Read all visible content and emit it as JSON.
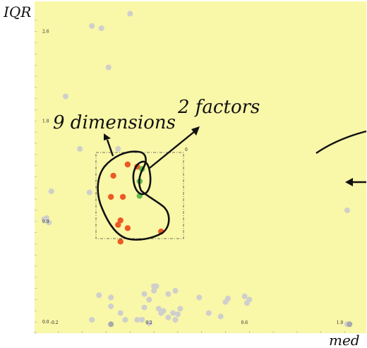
{
  "chart_data": {
    "type": "scatter",
    "xlabel": "med",
    "ylabel": "IQR",
    "xlim": [
      -0.28,
      1.11
    ],
    "ylim": [
      -0.1,
      2.87
    ],
    "x_ticks": [
      {
        "value": -0.2,
        "label": "-0.2"
      },
      {
        "value": 0.2,
        "label": "0.2"
      },
      {
        "value": 0.6,
        "label": "0.6"
      },
      {
        "value": 1.0,
        "label": "1.0"
      }
    ],
    "y_ticks": [
      {
        "value": 0.0,
        "label": "0.0"
      },
      {
        "value": 0.9,
        "label": "0.9"
      },
      {
        "value": 1.8,
        "label": "1.8"
      },
      {
        "value": 2.6,
        "label": "2.6"
      }
    ],
    "corner_label": "0",
    "annotations": [
      "9 dimensions",
      "2 factors"
    ],
    "colors": {
      "background": "#f9f7a8",
      "gray": "#cfcfcc",
      "dark_gray": "#a9a9ad",
      "red": "#ec5a24",
      "green": "#5fbf4a"
    },
    "series": [
      {
        "color": "gray",
        "points": [
          [
            -0.22,
            0.89
          ],
          [
            -0.24,
            0.92
          ],
          [
            -0.23,
            0.93
          ],
          [
            -0.21,
            1.17
          ],
          [
            -0.15,
            2.02
          ],
          [
            -0.09,
            1.55
          ],
          [
            -0.05,
            1.16
          ],
          [
            -0.04,
            2.65
          ],
          [
            0.0,
            2.63
          ],
          [
            0.03,
            2.28
          ],
          [
            0.07,
            1.55
          ],
          [
            0.12,
            2.76
          ],
          [
            0.22,
            0.28
          ],
          [
            0.22,
            0.32
          ],
          [
            0.23,
            0.32
          ],
          [
            0.18,
            0.25
          ],
          [
            0.28,
            0.25
          ],
          [
            0.31,
            0.28
          ],
          [
            0.2,
            0.2
          ],
          [
            0.25,
            0.08
          ],
          [
            0.28,
            0.04
          ],
          [
            0.3,
            0.08
          ],
          [
            0.32,
            0.07
          ],
          [
            0.33,
            0.12
          ],
          [
            0.41,
            0.22
          ],
          [
            0.5,
            0.05
          ],
          [
            0.53,
            0.21
          ],
          [
            0.6,
            0.23
          ],
          [
            0.62,
            0.2
          ],
          [
            0.61,
            0.17
          ],
          [
            1.03,
            1.0
          ],
          [
            1.03,
            -0.02
          ],
          [
            -0.04,
            0.02
          ],
          [
            0.08,
            0.08
          ],
          [
            0.1,
            0.02
          ],
          [
            0.15,
            0.02
          ],
          [
            0.17,
            0.02
          ],
          [
            0.2,
            -0.01
          ],
          [
            0.04,
            0.14
          ],
          [
            0.04,
            0.22
          ],
          [
            -0.01,
            0.24
          ],
          [
            0.24,
            0.12
          ],
          [
            0.26,
            0.1
          ],
          [
            0.31,
            0.02
          ],
          [
            0.45,
            0.08
          ],
          [
            0.52,
            0.18
          ],
          [
            0.18,
            0.13
          ]
        ]
      },
      {
        "color": "dark_gray",
        "points": [
          [
            0.04,
            -0.02
          ],
          [
            1.04,
            -0.02
          ]
        ]
      },
      {
        "color": "red",
        "points": [
          [
            0.05,
            1.31
          ],
          [
            0.11,
            1.41
          ],
          [
            0.15,
            1.39
          ],
          [
            0.04,
            1.12
          ],
          [
            0.09,
            1.12
          ],
          [
            0.08,
            0.91
          ],
          [
            0.11,
            0.84
          ],
          [
            0.07,
            0.87
          ],
          [
            0.08,
            0.72
          ],
          [
            0.25,
            0.81
          ]
        ]
      },
      {
        "color": "green",
        "points": [
          [
            0.17,
            1.37
          ],
          [
            0.16,
            1.26
          ],
          [
            0.16,
            1.13
          ]
        ]
      }
    ]
  }
}
